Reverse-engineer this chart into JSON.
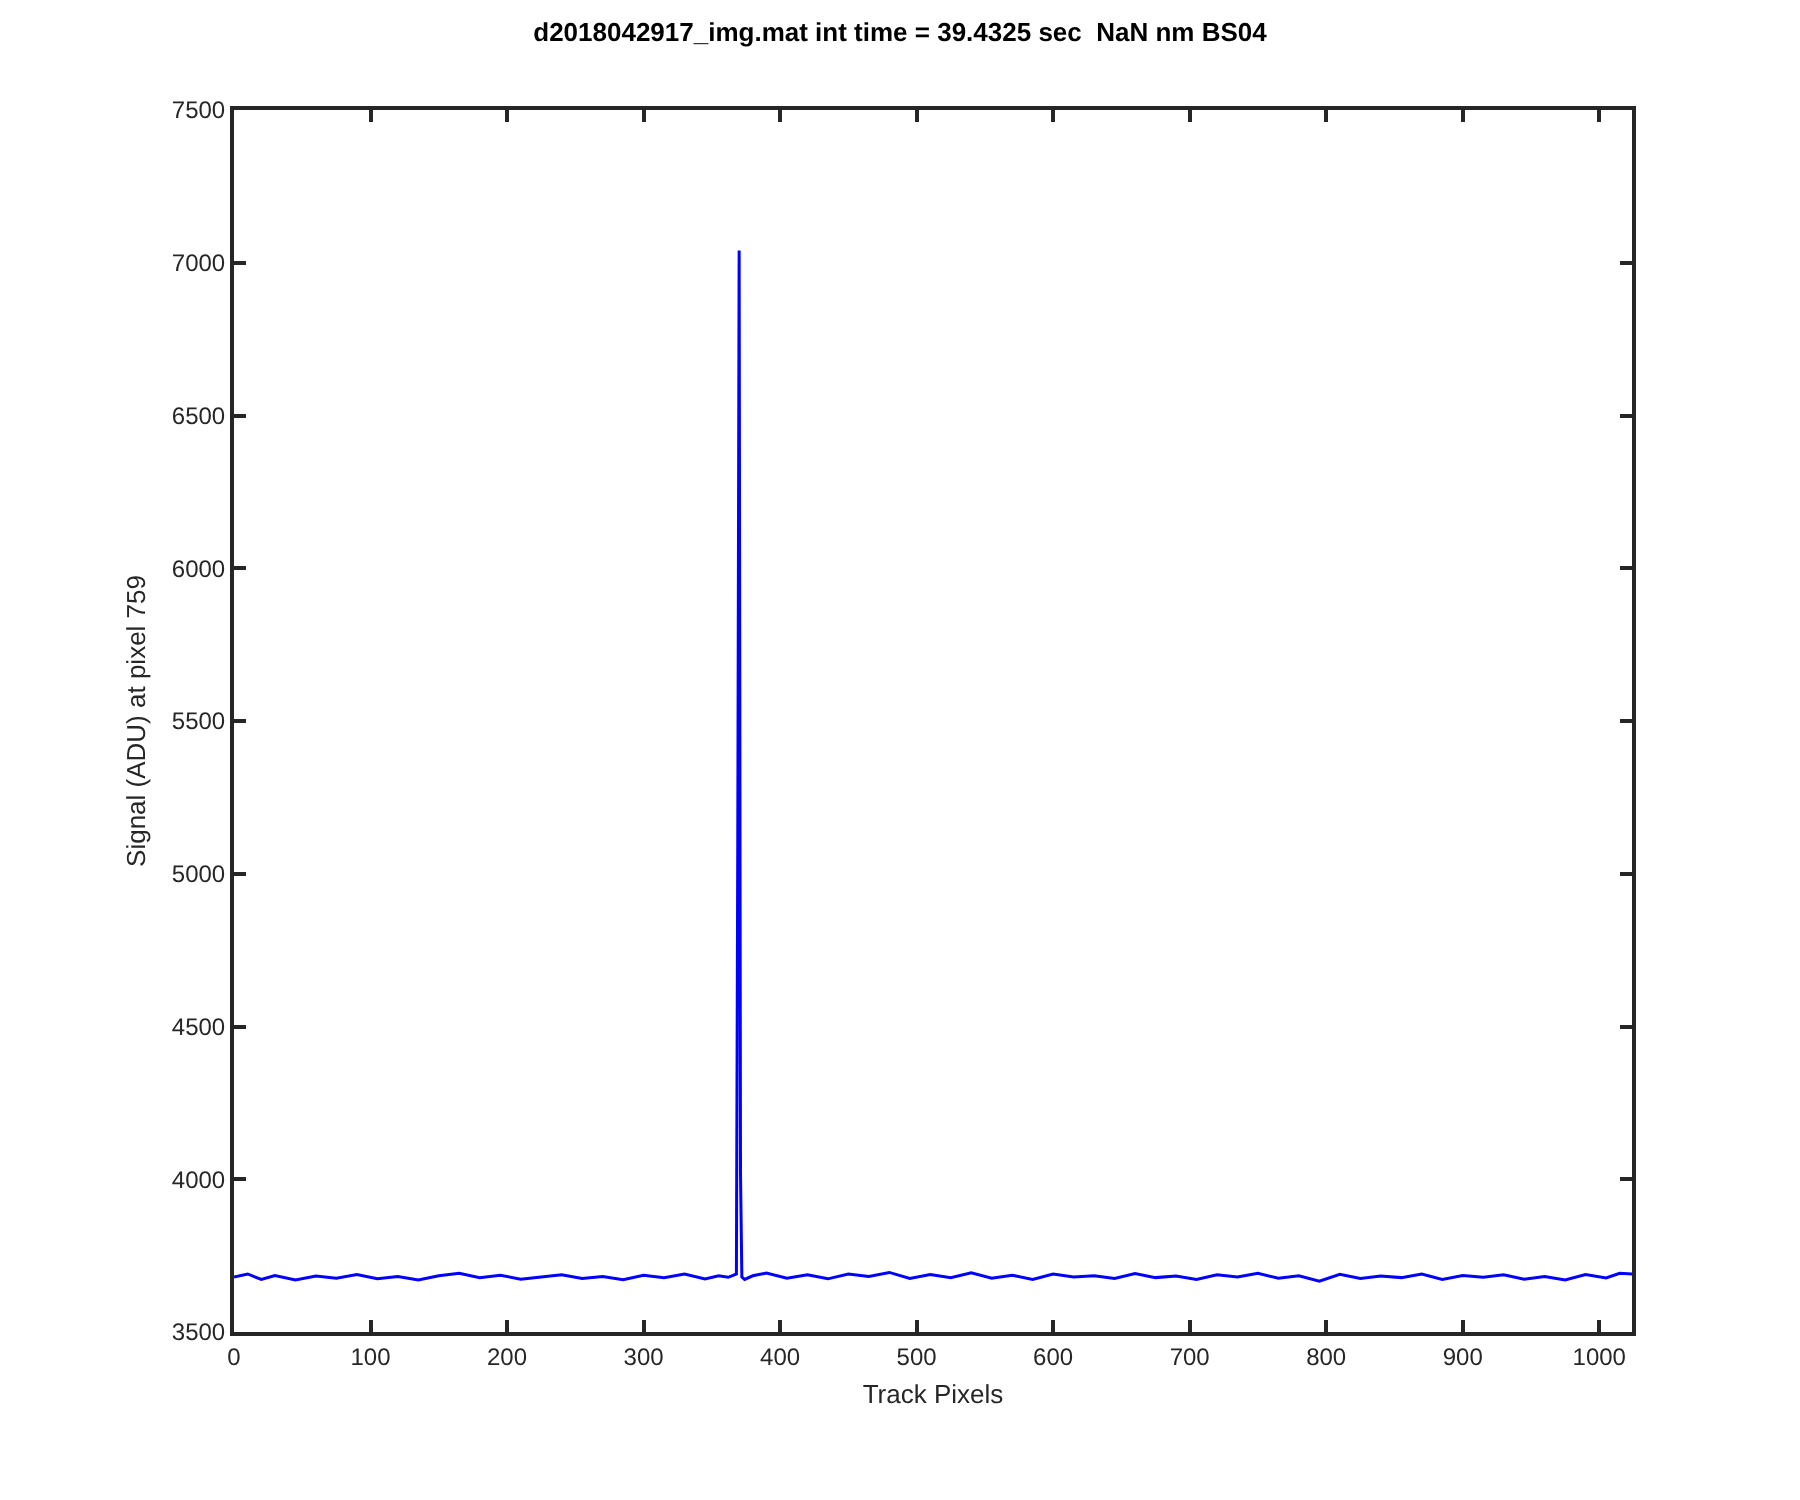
{
  "chart_data": {
    "type": "line",
    "title": "d2018042917_img.mat int time = 39.4325 sec  NaN nm BS04",
    "xlabel": "Track Pixels",
    "ylabel": "Signal (ADU) at pixel 759",
    "x": [
      0,
      10,
      20,
      30,
      45,
      60,
      75,
      90,
      105,
      120,
      135,
      150,
      165,
      180,
      195,
      210,
      225,
      240,
      255,
      270,
      285,
      300,
      315,
      330,
      345,
      355,
      362,
      366,
      368,
      369,
      370,
      371,
      372,
      374,
      380,
      390,
      405,
      420,
      435,
      450,
      465,
      480,
      495,
      510,
      525,
      540,
      555,
      570,
      585,
      600,
      615,
      630,
      645,
      660,
      675,
      690,
      705,
      720,
      735,
      750,
      765,
      780,
      795,
      810,
      825,
      840,
      855,
      870,
      885,
      900,
      915,
      930,
      945,
      960,
      975,
      990,
      1005,
      1015,
      1024
    ],
    "series": [
      {
        "color": "#0000ff",
        "values": [
          3680,
          3690,
          3672,
          3685,
          3670,
          3683,
          3676,
          3688,
          3674,
          3682,
          3670,
          3684,
          3692,
          3678,
          3686,
          3673,
          3680,
          3687,
          3675,
          3682,
          3671,
          3686,
          3678,
          3690,
          3674,
          3684,
          3679,
          3686,
          3690,
          5120,
          7040,
          4020,
          3680,
          3672,
          3684,
          3693,
          3676,
          3687,
          3674,
          3690,
          3682,
          3695,
          3675,
          3688,
          3678,
          3694,
          3676,
          3686,
          3672,
          3690,
          3680,
          3684,
          3675,
          3691,
          3678,
          3683,
          3672,
          3687,
          3680,
          3692,
          3676,
          3684,
          3666,
          3689,
          3675,
          3683,
          3678,
          3690,
          3672,
          3685,
          3679,
          3687,
          3673,
          3682,
          3670,
          3688,
          3677,
          3692,
          3690
        ]
      }
    ],
    "xlim": [
      0,
      1024
    ],
    "xticks": [
      0,
      100,
      200,
      300,
      400,
      500,
      600,
      700,
      800,
      900,
      1000
    ],
    "ylim": [
      3500,
      7500
    ],
    "yticks": [
      3500,
      4000,
      4500,
      5000,
      5500,
      6000,
      6500,
      7000,
      7500
    ],
    "grid": false,
    "marker": "none",
    "line_style": "solid"
  }
}
